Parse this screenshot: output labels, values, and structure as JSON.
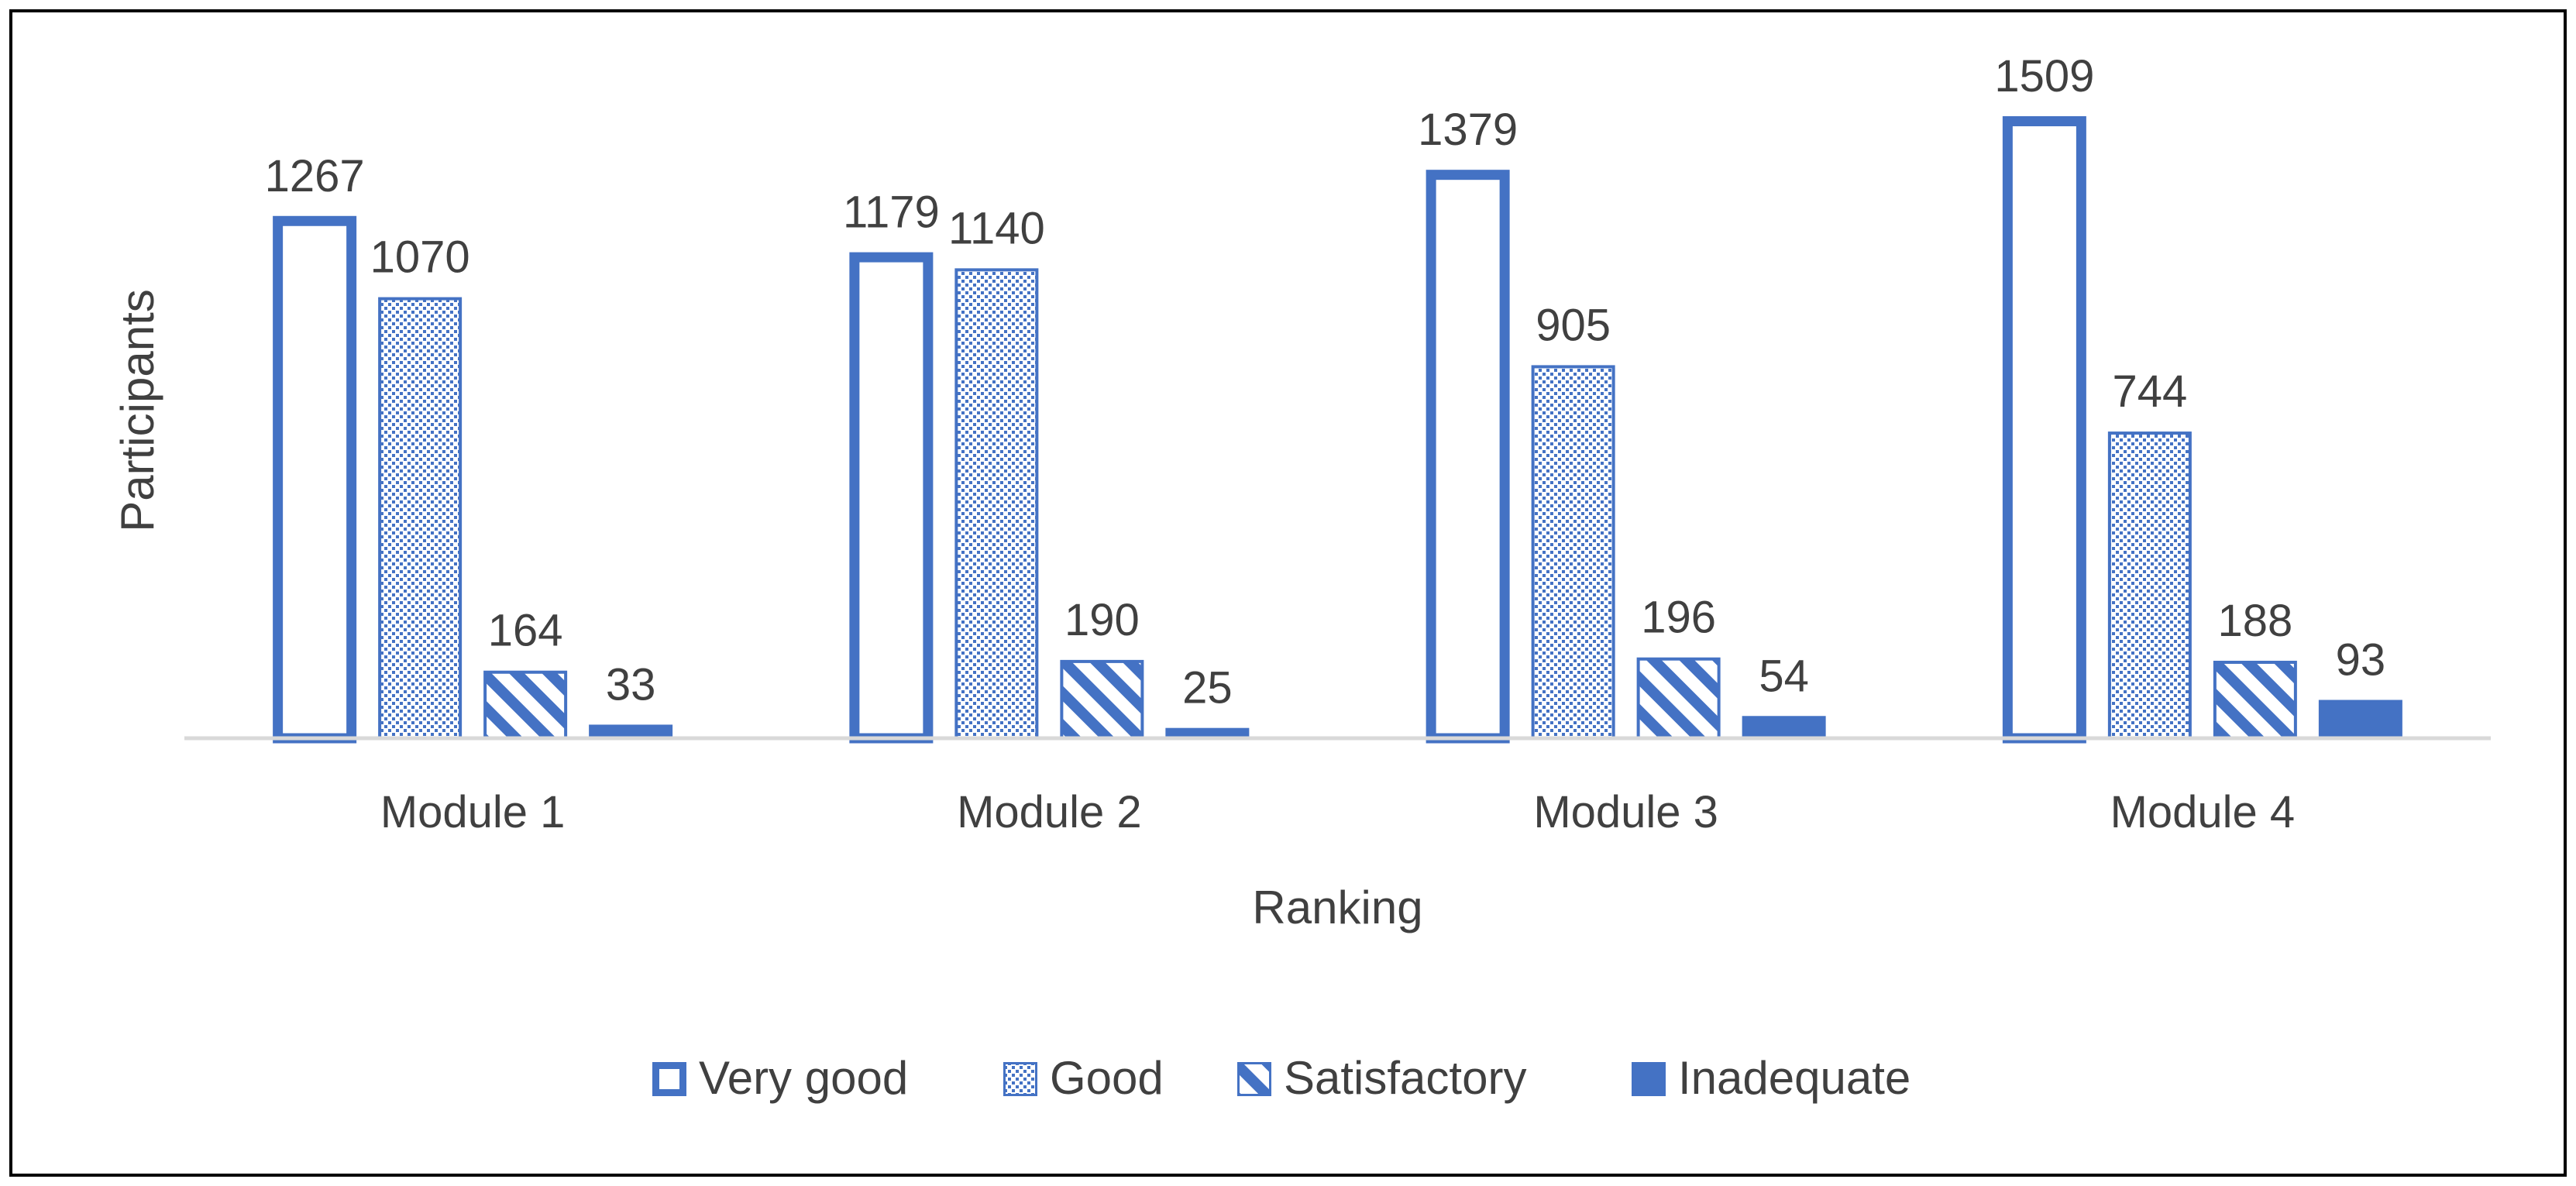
{
  "chart_data": {
    "type": "bar",
    "categories": [
      "Module 1",
      "Module 2",
      "Module 3",
      "Module 4"
    ],
    "series": [
      {
        "name": "Very good",
        "values": [
          1267,
          1179,
          1379,
          1509
        ],
        "pattern": "outline"
      },
      {
        "name": "Good",
        "values": [
          1070,
          1140,
          905,
          744
        ],
        "pattern": "dots"
      },
      {
        "name": "Satisfactory",
        "values": [
          164,
          190,
          196,
          188
        ],
        "pattern": "diagonal"
      },
      {
        "name": "Inadequate",
        "values": [
          33,
          25,
          54,
          93
        ],
        "pattern": "solid"
      }
    ],
    "title": "",
    "xlabel": "Ranking",
    "ylabel": "Participants",
    "ylim": [
      0,
      1509
    ],
    "grid": false,
    "legend": "bottom",
    "data_labels": true
  },
  "colors": {
    "accent": "#4472C4",
    "text": "#404040",
    "axis": "#D9D9D9",
    "border": "#000000"
  }
}
